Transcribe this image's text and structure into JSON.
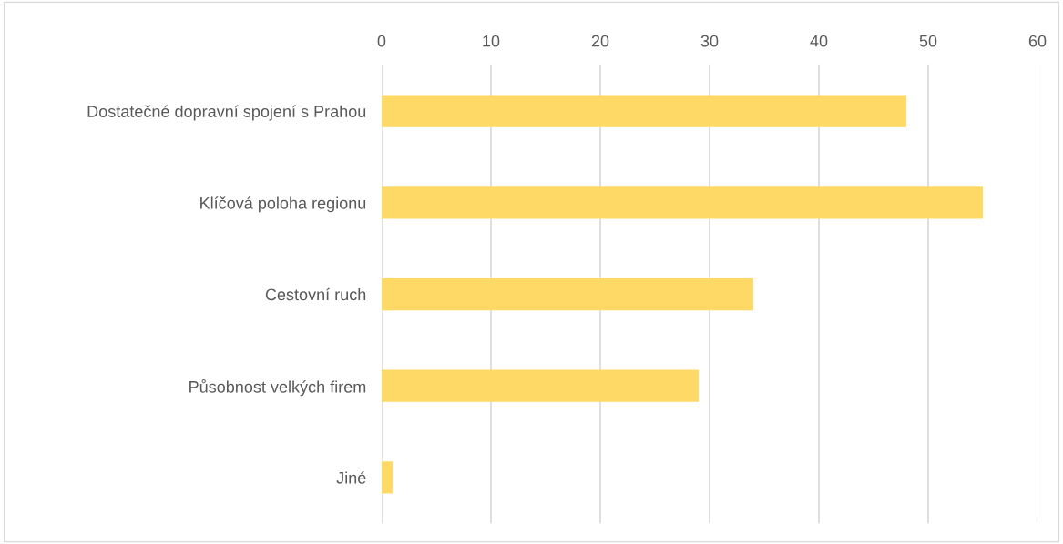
{
  "chart_data": {
    "type": "bar",
    "orientation": "horizontal",
    "categories": [
      "Dostatečné dopravní spojení s Prahou",
      "Klíčová poloha regionu",
      "Cestovní ruch",
      "Působnost velkých firem",
      "Jiné"
    ],
    "values": [
      48,
      55,
      34,
      29,
      1
    ],
    "color": "#ffd966",
    "xlim": [
      0,
      60
    ],
    "xticks": [
      0,
      10,
      20,
      30,
      40,
      50,
      60
    ],
    "grid": "x",
    "legend": false
  }
}
